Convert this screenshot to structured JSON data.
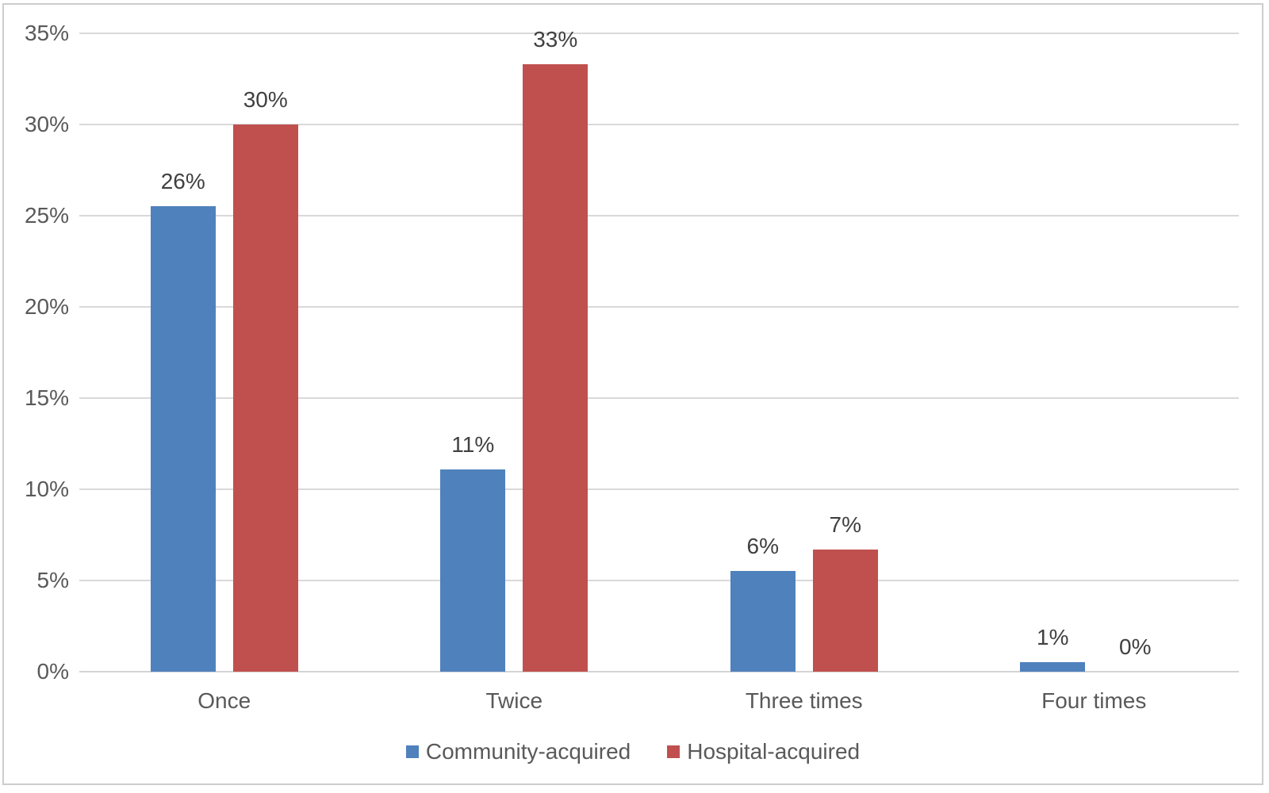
{
  "chart_data": {
    "type": "bar",
    "categories": [
      "Once",
      "Twice",
      "Three times",
      "Four times"
    ],
    "series": [
      {
        "name": "Community-acquired",
        "color": "#4F81BD",
        "values": [
          25.5,
          11.1,
          5.5,
          0.5
        ],
        "labels": [
          "26%",
          "11%",
          "6%",
          "1%"
        ]
      },
      {
        "name": "Hospital-acquired",
        "color": "#C0504D",
        "values": [
          30,
          33.3,
          6.7,
          0
        ],
        "labels": [
          "30%",
          "33%",
          "7%",
          "0%"
        ]
      }
    ],
    "ylim": [
      0,
      35
    ],
    "y_ticks": [
      "0%",
      "5%",
      "10%",
      "15%",
      "20%",
      "25%",
      "30%",
      "35%"
    ],
    "y_tick_values": [
      0,
      5,
      10,
      15,
      20,
      25,
      30,
      35
    ],
    "grid": true,
    "legend_position": "bottom"
  },
  "colors": {
    "gridline": "#D9D9D9",
    "axis_text": "#595959",
    "data_label_text": "#404040",
    "figure_border": "#CDCDCD",
    "background": "#FFFFFF"
  }
}
